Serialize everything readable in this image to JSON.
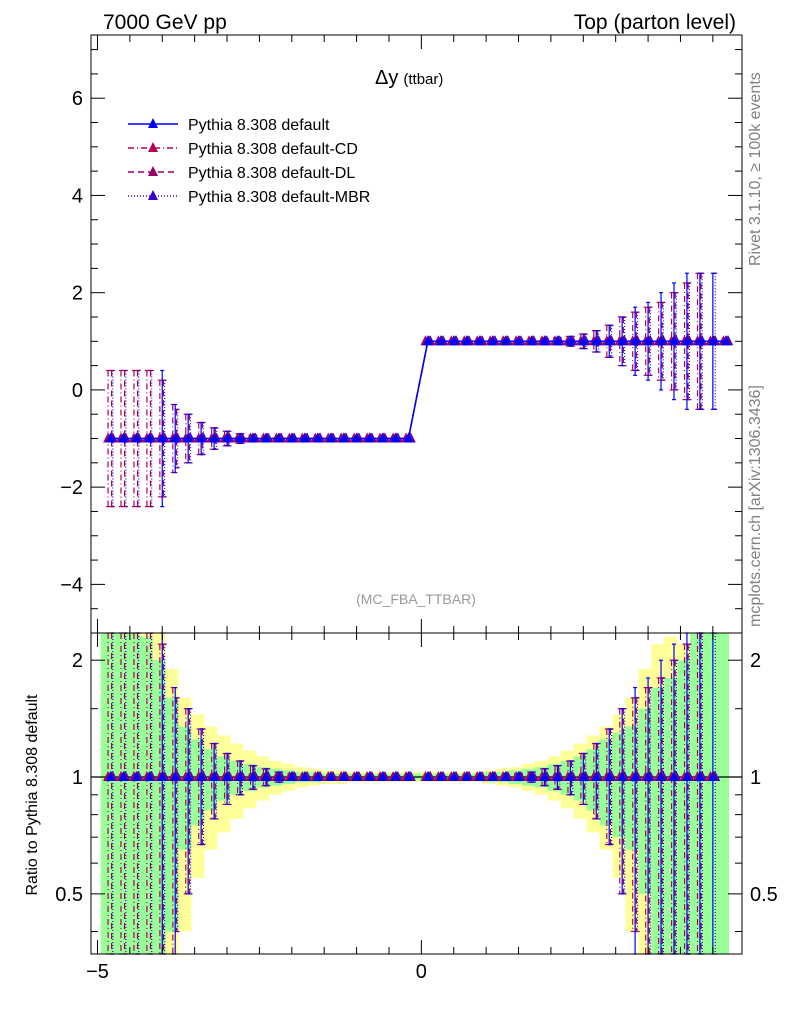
{
  "header": {
    "left": "7000 GeV pp",
    "right": "Top (parton level)"
  },
  "side": {
    "rivet": "Rivet 3.1.10, ≥ 100k events",
    "mcplots": "mcplots.cern.ch [arXiv:1306.3436]"
  },
  "chart_data": [
    {
      "type": "line",
      "panel": "main",
      "title": "Δy",
      "title_small": "(ttbar)",
      "analysis_label": "(MC_FBA_TTBAR)",
      "xlim": [
        -5.1,
        4.95
      ],
      "ylim": [
        -5.0,
        7.3
      ],
      "yticks": [
        -4,
        -2,
        0,
        2,
        4,
        6
      ],
      "ytick_labels": [
        "−4",
        "−2",
        "0",
        "2",
        "4",
        "6"
      ],
      "xticks": [
        -5,
        0
      ],
      "legend_position": "top-left",
      "x": [
        -4.8,
        -4.6,
        -4.4,
        -4.2,
        -4.0,
        -3.8,
        -3.6,
        -3.4,
        -3.2,
        -3.0,
        -2.8,
        -2.6,
        -2.4,
        -2.2,
        -2.0,
        -1.8,
        -1.6,
        -1.4,
        -1.2,
        -1.0,
        -0.8,
        -0.6,
        -0.4,
        -0.2,
        0.1,
        0.3,
        0.5,
        0.7,
        0.9,
        1.1,
        1.3,
        1.5,
        1.7,
        1.9,
        2.1,
        2.3,
        2.5,
        2.7,
        2.9,
        3.1,
        3.3,
        3.5,
        3.7,
        3.9,
        4.1,
        4.3,
        4.5,
        4.7
      ],
      "series": [
        {
          "name": "Pythia 8.308 default",
          "color": "#0000ff",
          "line": "solid",
          "values": [
            -1,
            -1,
            -1,
            -1,
            -1,
            -1,
            -1,
            -1,
            -1,
            -1,
            -1,
            -1,
            -1,
            -1,
            -1,
            -1,
            -1,
            -1,
            -1,
            -1,
            -1,
            -1,
            -1,
            -1,
            1,
            1,
            1,
            1,
            1,
            1,
            1,
            1,
            1,
            1,
            1,
            1,
            1,
            1,
            1,
            1,
            1,
            1,
            1,
            1,
            1,
            1,
            1,
            1
          ],
          "errors": [
            0,
            0,
            0,
            0,
            1.4,
            0.7,
            0.5,
            0.33,
            0.22,
            0.15,
            0.1,
            0.07,
            0.05,
            0.03,
            0.02,
            0.01,
            0,
            0,
            0,
            0,
            0,
            0,
            0,
            0,
            0,
            0,
            0,
            0,
            0,
            0,
            0.01,
            0.02,
            0.03,
            0.05,
            0.07,
            0.1,
            0.15,
            0.22,
            0.33,
            0.5,
            0.7,
            0.8,
            1.0,
            1.2,
            1.4,
            1.4,
            1.4,
            0
          ]
        },
        {
          "name": "Pythia 8.308 default-CD",
          "color": "#b4004e",
          "line": "dashdot",
          "values": [
            -1,
            -1,
            -1,
            -1,
            -1,
            -1,
            -1,
            -1,
            -1,
            -1,
            -1,
            -1,
            -1,
            -1,
            -1,
            -1,
            -1,
            -1,
            -1,
            -1,
            -1,
            -1,
            -1,
            -1,
            1,
            1,
            1,
            1,
            1,
            1,
            1,
            1,
            1,
            1,
            1,
            1,
            1,
            1,
            1,
            1,
            1,
            1,
            1,
            1,
            1,
            1,
            1,
            1
          ],
          "errors": [
            1.4,
            1.4,
            1.4,
            1.4,
            1.2,
            0.7,
            0.5,
            0.33,
            0.22,
            0.15,
            0.1,
            0.07,
            0.05,
            0.03,
            0.02,
            0.01,
            0,
            0,
            0,
            0,
            0,
            0,
            0,
            0,
            0,
            0,
            0,
            0,
            0,
            0,
            0.01,
            0.02,
            0.03,
            0.05,
            0.07,
            0.1,
            0.15,
            0.22,
            0.33,
            0.5,
            0.6,
            0.7,
            0.8,
            1.0,
            1.2,
            1.4,
            0,
            0
          ]
        },
        {
          "name": "Pythia 8.308 default-DL",
          "color": "#990066",
          "line": "dashed",
          "values": [
            -1,
            -1,
            -1,
            -1,
            -1,
            -1,
            -1,
            -1,
            -1,
            -1,
            -1,
            -1,
            -1,
            -1,
            -1,
            -1,
            -1,
            -1,
            -1,
            -1,
            -1,
            -1,
            -1,
            -1,
            1,
            1,
            1,
            1,
            1,
            1,
            1,
            1,
            1,
            1,
            1,
            1,
            1,
            1,
            1,
            1,
            1,
            1,
            1,
            1,
            1,
            1,
            1,
            1
          ],
          "errors": [
            1.4,
            1.4,
            1.4,
            1.4,
            1.2,
            0.6,
            0.5,
            0.33,
            0.22,
            0.15,
            0.1,
            0.07,
            0.05,
            0.03,
            0.02,
            0.01,
            0,
            0,
            0,
            0,
            0,
            0,
            0,
            0,
            0,
            0,
            0,
            0,
            0,
            0,
            0.01,
            0.02,
            0.03,
            0.05,
            0.07,
            0.1,
            0.15,
            0.22,
            0.33,
            0.5,
            0.6,
            0.7,
            0.8,
            1.0,
            1.2,
            1.4,
            0,
            0
          ]
        },
        {
          "name": "Pythia 8.308 default-MBR",
          "color": "#3300cc",
          "line": "dotted",
          "values": [
            -1,
            -1,
            -1,
            -1,
            -1,
            -1,
            -1,
            -1,
            -1,
            -1,
            -1,
            -1,
            -1,
            -1,
            -1,
            -1,
            -1,
            -1,
            -1,
            -1,
            -1,
            -1,
            -1,
            -1,
            1,
            1,
            1,
            1,
            1,
            1,
            1,
            1,
            1,
            1,
            1,
            1,
            1,
            1,
            1,
            1,
            1,
            1,
            1,
            1,
            1,
            1,
            1,
            1
          ],
          "errors": [
            1.4,
            1.4,
            1.4,
            1.4,
            1.2,
            0.6,
            0.5,
            0.33,
            0.22,
            0.15,
            0.1,
            0.07,
            0.05,
            0.03,
            0.02,
            0.01,
            0,
            0,
            0,
            0,
            0,
            0,
            0,
            0,
            0,
            0,
            0,
            0,
            0,
            0,
            0.01,
            0.02,
            0.03,
            0.05,
            0.07,
            0.1,
            0.15,
            0.22,
            0.33,
            0.5,
            0.6,
            0.7,
            0.8,
            1.0,
            1.2,
            1.4,
            1.4,
            0
          ]
        }
      ]
    },
    {
      "type": "line",
      "panel": "ratio",
      "ylabel": "Ratio to Pythia 8.308 default",
      "ylim": [
        0.35,
        2.35
      ],
      "yticks": [
        0.5,
        1,
        2
      ],
      "ytick_labels": [
        "0.5",
        "1",
        "2"
      ],
      "xticks": [
        -5,
        0
      ],
      "xtick_labels": [
        "−5",
        "0"
      ],
      "band_x_edges": [
        -4.95,
        -4.75,
        -4.55,
        -4.35,
        -4.15,
        -3.95,
        -3.75,
        -3.55,
        -3.35,
        -3.15,
        -2.95,
        -2.75,
        -2.55,
        -2.35,
        -2.15,
        -1.95,
        -1.75,
        -1.55,
        -1.35,
        -1.15,
        -0.95,
        -0.75,
        -0.55,
        -0.35,
        -0.15,
        0.15,
        0.35,
        0.55,
        0.75,
        0.95,
        1.15,
        1.35,
        1.55,
        1.75,
        1.95,
        2.15,
        2.35,
        2.55,
        2.75,
        2.95,
        3.15,
        3.35,
        3.55,
        3.75,
        3.95,
        4.15,
        4.35,
        4.55,
        4.75
      ],
      "stat_band_halfwidth": [
        3,
        3,
        3,
        1.3,
        1.0,
        0.6,
        0.35,
        0.25,
        0.18,
        0.13,
        0.1,
        0.08,
        0.06,
        0.05,
        0.04,
        0.03,
        0.03,
        0.02,
        0.02,
        0.02,
        0.02,
        0.02,
        0.02,
        0.02,
        0.02,
        0.02,
        0.02,
        0.02,
        0.02,
        0.03,
        0.03,
        0.04,
        0.05,
        0.06,
        0.08,
        0.1,
        0.13,
        0.18,
        0.25,
        0.3,
        0.35,
        0.5,
        0.7,
        0.8,
        1.0,
        3,
        3,
        3
      ],
      "total_band_halfwidth": [
        3,
        3,
        3,
        3,
        3,
        0.9,
        0.6,
        0.45,
        0.35,
        0.28,
        0.22,
        0.17,
        0.13,
        0.1,
        0.08,
        0.06,
        0.05,
        0.04,
        0.04,
        0.03,
        0.03,
        0.03,
        0.03,
        0.03,
        0.03,
        0.03,
        0.03,
        0.03,
        0.03,
        0.04,
        0.05,
        0.06,
        0.08,
        0.1,
        0.13,
        0.17,
        0.22,
        0.28,
        0.35,
        0.45,
        0.6,
        0.9,
        1.2,
        1.3,
        1.2,
        3,
        3,
        3
      ],
      "band_colors": {
        "stat": "#99ff99",
        "total": "#ffff99"
      },
      "reference_line": 1,
      "series_names": [
        "Pythia 8.308 default",
        "Pythia 8.308 default-CD",
        "Pythia 8.308 default-DL",
        "Pythia 8.308 default-MBR"
      ],
      "ratio_values": 1
    }
  ]
}
